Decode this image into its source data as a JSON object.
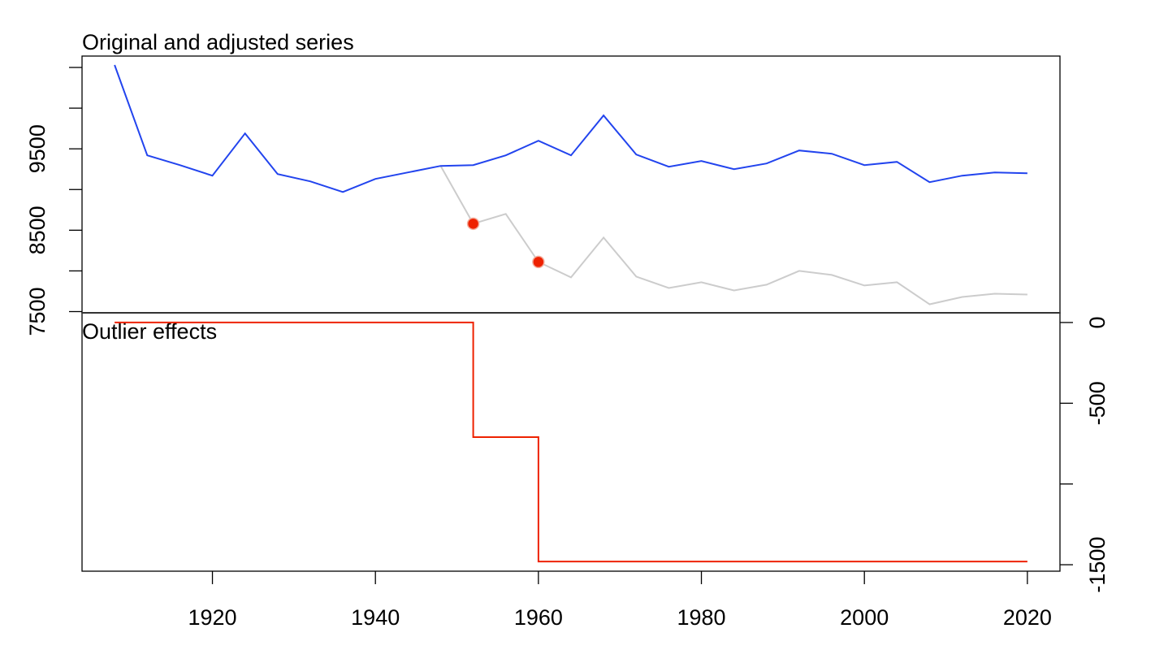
{
  "chart_data": [
    {
      "type": "line",
      "title": "Original and adjusted series",
      "x": [
        1908,
        1912,
        1916,
        1920,
        1924,
        1928,
        1932,
        1936,
        1940,
        1944,
        1948,
        1952,
        1956,
        1960,
        1964,
        1968,
        1972,
        1976,
        1980,
        1984,
        1988,
        1992,
        1996,
        2000,
        2004,
        2008,
        2012,
        2016,
        2020
      ],
      "series": [
        {
          "key": "adjusted",
          "color": "#2244ee",
          "values": [
            10530,
            9420,
            9300,
            9170,
            9690,
            9190,
            9100,
            8970,
            9130,
            9210,
            9290,
            9300,
            9420,
            9600,
            9420,
            9910,
            9430,
            9280,
            9350,
            9250,
            9320,
            9480,
            9440,
            9300,
            9340,
            9090,
            9170,
            9210,
            9200
          ]
        },
        {
          "key": "original",
          "color": "#cccccc",
          "start_index": 10,
          "values": [
            null,
            null,
            null,
            null,
            null,
            null,
            null,
            null,
            null,
            null,
            9290,
            8580,
            8700,
            8110,
            7920,
            8410,
            7930,
            7790,
            7860,
            7760,
            7830,
            8000,
            7950,
            7820,
            7860,
            7590,
            7680,
            7720,
            7710
          ]
        }
      ],
      "markers": {
        "color": "#ee2200",
        "points": [
          {
            "x": 1952,
            "y": 8580
          },
          {
            "x": 1960,
            "y": 8110
          }
        ]
      },
      "xlim": [
        1904,
        2024
      ],
      "ylim": [
        7485,
        10640
      ],
      "y_ticks": [
        7500,
        8000,
        8500,
        9000,
        9500,
        10000,
        10500
      ],
      "y_tick_labels": [
        "7500",
        "",
        "8500",
        "",
        "9500",
        "",
        ""
      ],
      "y_axis_side": "left"
    },
    {
      "type": "line",
      "title": "Outlier effects",
      "step": true,
      "x": [
        1908,
        1952,
        1960,
        2020
      ],
      "series": [
        {
          "key": "effects",
          "color": "#ee2200",
          "values": [
            0,
            -710,
            -1480,
            -1480
          ]
        }
      ],
      "xlim": [
        1904,
        2024
      ],
      "ylim": [
        -1540,
        60
      ],
      "y_ticks": [
        0,
        -500,
        -1000,
        -1500
      ],
      "y_tick_labels": [
        "0",
        "-500",
        "",
        "-1500"
      ],
      "y_axis_side": "right",
      "x_ticks": [
        1920,
        1940,
        1960,
        1980,
        2000,
        2020
      ],
      "x_tick_labels": [
        "1920",
        "1940",
        "1960",
        "1980",
        "2000",
        "2020"
      ]
    }
  ]
}
